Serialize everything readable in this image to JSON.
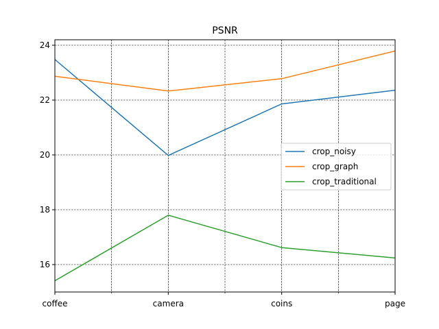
{
  "chart_data": {
    "type": "line",
    "title": "PSNR",
    "xlabel": "",
    "ylabel": "",
    "categories": [
      "coffee",
      "camera",
      "coins",
      "page"
    ],
    "series": [
      {
        "name": "crop_noisy",
        "color": "#1f77b4",
        "values": [
          23.48,
          19.98,
          21.86,
          22.36
        ]
      },
      {
        "name": "crop_graph",
        "color": "#ff7f0e",
        "values": [
          22.87,
          22.33,
          22.78,
          23.79
        ]
      },
      {
        "name": "crop_traditional",
        "color": "#2ca02c",
        "values": [
          15.41,
          17.8,
          16.62,
          16.24
        ]
      }
    ],
    "ylim": [
      15.0,
      24.2
    ],
    "yticks": [
      16,
      18,
      20,
      22,
      24
    ],
    "ytick_labels": [
      "16",
      "18",
      "20",
      "22",
      "24"
    ],
    "grid": true,
    "grid_style": "dashed",
    "legend_position": "center-right"
  }
}
